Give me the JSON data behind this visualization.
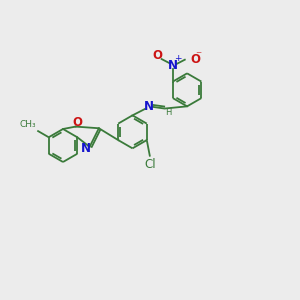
{
  "background_color": "#ececec",
  "bond_color": "#3a7a3a",
  "N_color": "#1414cc",
  "O_color": "#cc1414",
  "Cl_color": "#3a7a3a",
  "figsize": [
    3.0,
    3.0
  ],
  "dpi": 100,
  "lw": 1.3,
  "fs": 8.5,
  "r_hex": 0.55,
  "xlim": [
    0,
    10
  ],
  "ylim": [
    0,
    10
  ]
}
